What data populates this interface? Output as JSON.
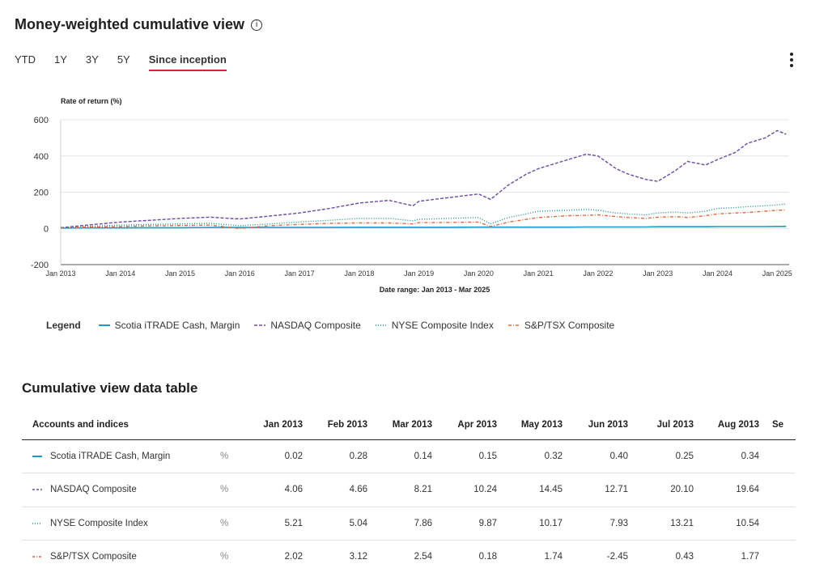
{
  "header": {
    "title": "Money-weighted cumulative view",
    "info_icon": "info-icon"
  },
  "tabs": [
    {
      "label": "YTD",
      "active": false
    },
    {
      "label": "1Y",
      "active": false
    },
    {
      "label": "3Y",
      "active": false
    },
    {
      "label": "5Y",
      "active": false
    },
    {
      "label": "Since inception",
      "active": true
    }
  ],
  "menu_icon": "kebab-menu-icon",
  "colors": {
    "accent": "#d9242b",
    "cash": "#1a9bc9",
    "nasdaq": "#6a4aa0",
    "nyse": "#1c8f8a",
    "tsx": "#e0683c"
  },
  "chart_data": {
    "type": "line",
    "ylabel": "Rate of return (%)",
    "xlabel": "Date range: Jan 2013 - Mar 2025",
    "ylim": [
      -200,
      600
    ],
    "yticks": [
      "600",
      "400",
      "200",
      "0",
      "-200"
    ],
    "xticks": [
      "Jan 2013",
      "Jan 2014",
      "Jan 2015",
      "Jan 2016",
      "Jan 2017",
      "Jan 2018",
      "Jan 2019",
      "Jan 2020",
      "Jan 2021",
      "Jan 2022",
      "Jan 2023",
      "Jan 2024",
      "Jan 2025"
    ],
    "grid": true,
    "x": [
      2013.0,
      2013.5,
      2014.0,
      2014.5,
      2015.0,
      2015.5,
      2016.0,
      2016.5,
      2017.0,
      2017.5,
      2018.0,
      2018.5,
      2018.9,
      2019.0,
      2019.5,
      2020.0,
      2020.2,
      2020.5,
      2020.8,
      2021.0,
      2021.5,
      2021.8,
      2022.0,
      2022.3,
      2022.5,
      2022.8,
      2023.0,
      2023.3,
      2023.5,
      2023.8,
      2024.0,
      2024.3,
      2024.5,
      2024.8,
      2025.0,
      2025.15
    ],
    "series": [
      {
        "name": "Scotia iTRADE Cash, Margin",
        "style": "solid",
        "values": [
          2,
          3,
          3,
          4,
          4,
          5,
          5,
          5,
          5,
          5,
          6,
          6,
          6,
          6,
          6,
          7,
          7,
          7,
          7,
          7,
          7,
          8,
          8,
          8,
          8,
          8,
          9,
          9,
          9,
          9,
          10,
          10,
          10,
          10,
          11,
          11
        ]
      },
      {
        "name": "NASDAQ Composite",
        "style": "dashed",
        "values": [
          4,
          20,
          35,
          45,
          55,
          62,
          52,
          68,
          85,
          110,
          140,
          155,
          125,
          150,
          170,
          190,
          160,
          240,
          300,
          330,
          380,
          410,
          400,
          330,
          300,
          270,
          260,
          320,
          370,
          350,
          380,
          420,
          470,
          500,
          540,
          520
        ]
      },
      {
        "name": "NYSE Composite Index",
        "style": "dotted",
        "values": [
          5,
          12,
          18,
          22,
          25,
          28,
          15,
          25,
          35,
          45,
          55,
          55,
          42,
          50,
          55,
          60,
          25,
          60,
          80,
          95,
          100,
          105,
          100,
          85,
          80,
          75,
          85,
          90,
          85,
          95,
          110,
          115,
          120,
          125,
          130,
          135
        ]
      },
      {
        "name": "S&P/TSX Composite",
        "style": "dashdot",
        "values": [
          2,
          8,
          10,
          14,
          16,
          18,
          0,
          15,
          22,
          28,
          30,
          30,
          25,
          32,
          33,
          35,
          10,
          35,
          50,
          60,
          70,
          72,
          75,
          65,
          60,
          55,
          62,
          65,
          60,
          70,
          80,
          85,
          88,
          95,
          100,
          102
        ]
      }
    ]
  },
  "legend": {
    "title": "Legend"
  },
  "table": {
    "title": "Cumulative view data table",
    "header_first": "Accounts and indices",
    "columns": [
      "Jan 2013",
      "Feb 2013",
      "Mar 2013",
      "Apr 2013",
      "May 2013",
      "Jun 2013",
      "Jul 2013",
      "Aug 2013",
      "Se"
    ],
    "rows": [
      {
        "name": "Scotia iTRADE Cash, Margin",
        "unit": "%",
        "values": [
          "0.02",
          "0.28",
          "0.14",
          "0.15",
          "0.32",
          "0.40",
          "0.25",
          "0.34",
          ""
        ]
      },
      {
        "name": "NASDAQ Composite",
        "unit": "%",
        "values": [
          "4.06",
          "4.66",
          "8.21",
          "10.24",
          "14.45",
          "12.71",
          "20.10",
          "19.64",
          ""
        ]
      },
      {
        "name": "NYSE Composite Index",
        "unit": "%",
        "values": [
          "5.21",
          "5.04",
          "7.86",
          "9.87",
          "10.17",
          "7.93",
          "13.21",
          "10.54",
          ""
        ]
      },
      {
        "name": "S&P/TSX Composite",
        "unit": "%",
        "values": [
          "2.02",
          "3.12",
          "2.54",
          "0.18",
          "1.74",
          "-2.45",
          "0.43",
          "1.77",
          ""
        ]
      }
    ]
  }
}
